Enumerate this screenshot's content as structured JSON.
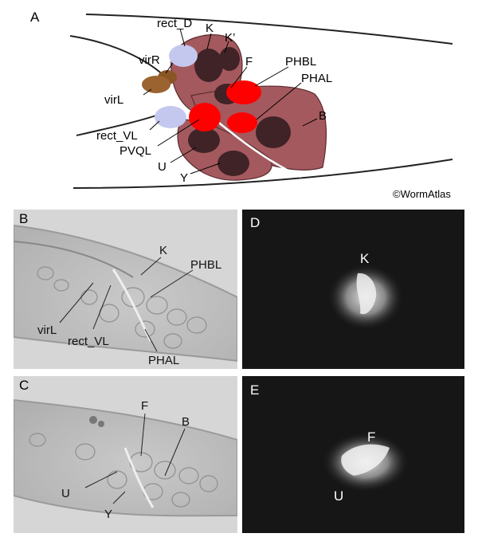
{
  "panelA": {
    "letter": "A",
    "labels": {
      "rect_D": "rect_D",
      "K": "K",
      "K_prime": "K’",
      "virR": "virR",
      "virL": "virL",
      "F": "F",
      "PHBL": "PHBL",
      "PHAL": "PHAL",
      "B": "B",
      "rect_VL": "rect_VL",
      "PVQL": "PVQL",
      "U": "U",
      "Y": "Y"
    },
    "credit": "©WormAtlas"
  },
  "panelB": {
    "letter": "B",
    "labels": {
      "K": "K",
      "PHBL": "PHBL",
      "virL": "virL",
      "rect_VL": "rect_VL",
      "PHAL": "PHAL"
    }
  },
  "panelC": {
    "letter": "C",
    "labels": {
      "F": "F",
      "B": "B",
      "U": "U",
      "Y": "Y"
    }
  },
  "panelD": {
    "letter": "D",
    "labels": {
      "K": "K"
    }
  },
  "panelE": {
    "letter": "E",
    "labels": {
      "F": "F",
      "U": "U"
    }
  },
  "colors": {
    "blast_cell": "#a4595e",
    "nucleus": "#3f2326",
    "neuron_red": "#ff0000",
    "rectal_gland": "#c5c8ee",
    "virL": "#9a6330",
    "micrograph_bg": "#d6d6d6",
    "fluorescence_bg": "#161616"
  }
}
